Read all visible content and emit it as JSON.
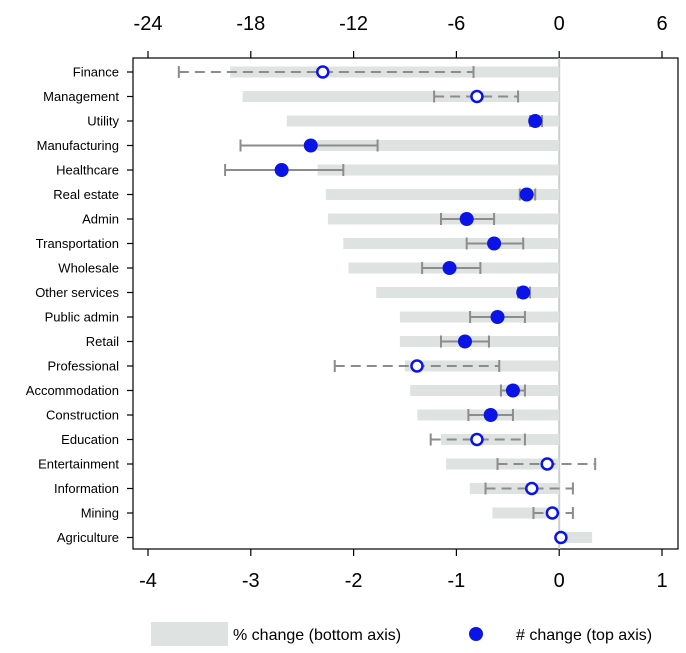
{
  "chart_data": {
    "type": "bar",
    "orientation": "horizontal",
    "bottom_axis": {
      "label": "",
      "range": [
        -4,
        1
      ],
      "ticks": [
        "-4",
        "-3",
        "-2",
        "-1",
        "0",
        "1"
      ]
    },
    "top_axis": {
      "label": "",
      "range": [
        -24,
        6
      ],
      "ticks": [
        "-24",
        "-18",
        "-12",
        "-6",
        "0",
        "6"
      ]
    },
    "grid": false,
    "legend_placement": "bottom",
    "colors": {
      "bar": "#dee3e1",
      "point": "#0a14e6",
      "whisker": "#8c8c8c",
      "zero_line": "#c7d0cd"
    },
    "legend": [
      {
        "label": "% change (bottom axis)",
        "kind": "bar"
      },
      {
        "label": "# change (top axis)",
        "kind": "point"
      }
    ],
    "categories": [
      "Finance",
      "Management",
      "Utility",
      "Manufacturing",
      "Healthcare",
      "Real estate",
      "Admin",
      "Transportation",
      "Wholesale",
      "Other services",
      "Public admin",
      "Retail",
      "Professional",
      "Accommodation",
      "Construction",
      "Education",
      "Entertainment",
      "Information",
      "Mining",
      "Agriculture"
    ],
    "series": [
      {
        "name": "% change (bottom axis)",
        "axis": "bottom",
        "values": [
          -3.2,
          -3.08,
          -2.65,
          -2.35,
          -2.35,
          -2.27,
          -2.25,
          -2.1,
          -2.05,
          -1.78,
          -1.55,
          -1.55,
          -1.5,
          -1.45,
          -1.38,
          -1.15,
          -1.1,
          -0.87,
          -0.65,
          0.32
        ]
      },
      {
        "name": "# change (top axis)",
        "axis": "top",
        "point_values": [
          -13.8,
          -4.8,
          -1.4,
          -14.5,
          -16.2,
          -1.9,
          -5.4,
          -3.8,
          -6.4,
          -2.1,
          -3.6,
          -5.5,
          -8.3,
          -2.7,
          -4.0,
          -4.8,
          -0.7,
          -1.6,
          -0.4,
          0.1
        ],
        "ci_low": [
          -22.2,
          -7.3,
          -1.7,
          -18.6,
          -19.5,
          -2.3,
          -6.9,
          -5.4,
          -8.0,
          -2.4,
          -5.2,
          -6.9,
          -13.1,
          -3.4,
          -5.3,
          -7.5,
          -3.6,
          -4.3,
          -1.5,
          null
        ],
        "ci_high": [
          -5.0,
          -2.4,
          -1.0,
          -10.6,
          -12.6,
          -1.4,
          -3.8,
          -2.1,
          -4.6,
          -1.7,
          -2.0,
          -4.1,
          -3.5,
          -2.0,
          -2.7,
          -2.0,
          2.1,
          0.8,
          0.8,
          null
        ],
        "significant": [
          false,
          false,
          true,
          true,
          true,
          true,
          true,
          true,
          true,
          true,
          true,
          true,
          false,
          true,
          true,
          false,
          false,
          false,
          false,
          false
        ]
      }
    ]
  }
}
